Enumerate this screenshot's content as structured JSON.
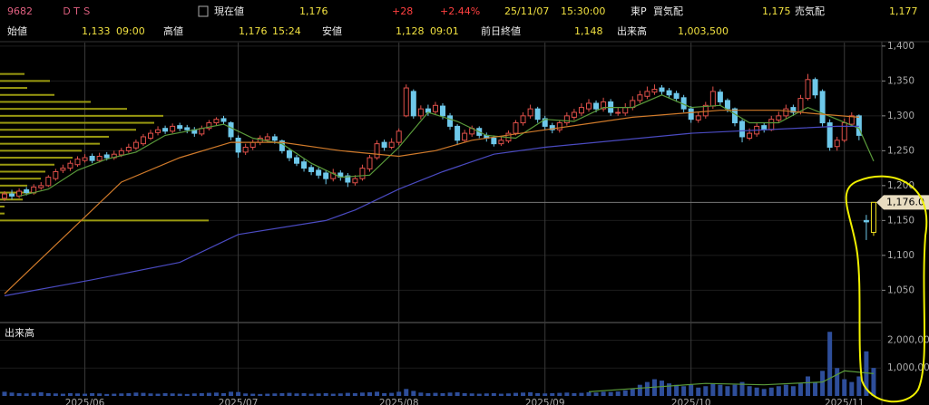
{
  "header": {
    "code": "9682",
    "name": "ＤＴＳ",
    "price_label": "現在値",
    "price": "1,176",
    "change": "+28",
    "change_pct": "+2.44%",
    "date": "25/11/07",
    "time": "15:30:00",
    "market": "東P",
    "bid_label": "買気配",
    "bid": "1,175",
    "ask_label": "売気配",
    "ask": "1,177",
    "open_label": "始値",
    "open": "1,133",
    "open_time": "09:00",
    "high_label": "高値",
    "high": "1,176",
    "high_time": "15:24",
    "low_label": "安値",
    "low": "1,128",
    "low_time": "09:01",
    "prev_close_label": "前日終値",
    "prev_close": "1,148",
    "volume_label": "出来高",
    "volume": "1,003,500"
  },
  "chart_data": {
    "type": "candlestick",
    "ylim": [
      1005,
      1405
    ],
    "yticks": [
      {
        "value": 1050,
        "label": "1,050"
      },
      {
        "value": 1100,
        "label": "1,100"
      },
      {
        "value": 1150,
        "label": "1,150"
      },
      {
        "value": 1200,
        "label": "1,200"
      },
      {
        "value": 1250,
        "label": "1,250"
      },
      {
        "value": 1300,
        "label": "1,300"
      },
      {
        "value": 1350,
        "label": "1,350"
      },
      {
        "value": 1400,
        "label": "1,400"
      }
    ],
    "xlim": [
      0,
      119
    ],
    "xticks": [
      {
        "value": 11,
        "label": "2025/06"
      },
      {
        "value": 32,
        "label": "2025/07"
      },
      {
        "value": 54,
        "label": "2025/08"
      },
      {
        "value": 74,
        "label": "2025/09"
      },
      {
        "value": 94,
        "label": "2025/10"
      },
      {
        "value": 115,
        "label": "2025/11"
      }
    ],
    "grid": true,
    "up_color": "#e0504a",
    "down_color": "#6ec8ea",
    "last_color": "#f0e020",
    "current_price": {
      "value": 1176,
      "label": "1,176.0"
    },
    "candles": [
      [
        1182,
        1192,
        1178,
        1188
      ],
      [
        1188,
        1194,
        1180,
        1185
      ],
      [
        1185,
        1196,
        1182,
        1192
      ],
      [
        1194,
        1198,
        1186,
        1190
      ],
      [
        1190,
        1202,
        1187,
        1198
      ],
      [
        1197,
        1205,
        1194,
        1200
      ],
      [
        1200,
        1215,
        1198,
        1212
      ],
      [
        1210,
        1224,
        1207,
        1220
      ],
      [
        1222,
        1230,
        1218,
        1225
      ],
      [
        1225,
        1236,
        1221,
        1232
      ],
      [
        1230,
        1242,
        1227,
        1238
      ],
      [
        1236,
        1245,
        1233,
        1240
      ],
      [
        1242,
        1246,
        1232,
        1236
      ],
      [
        1236,
        1247,
        1233,
        1242
      ],
      [
        1244,
        1248,
        1236,
        1240
      ],
      [
        1240,
        1250,
        1237,
        1245
      ],
      [
        1244,
        1254,
        1241,
        1250
      ],
      [
        1250,
        1260,
        1247,
        1255
      ],
      [
        1254,
        1266,
        1251,
        1262
      ],
      [
        1260,
        1274,
        1257,
        1270
      ],
      [
        1268,
        1280,
        1265,
        1275
      ],
      [
        1276,
        1285,
        1272,
        1280
      ],
      [
        1282,
        1286,
        1274,
        1278
      ],
      [
        1278,
        1289,
        1275,
        1285
      ],
      [
        1286,
        1290,
        1278,
        1282
      ],
      [
        1283,
        1287,
        1275,
        1280
      ],
      [
        1280,
        1284,
        1270,
        1275
      ],
      [
        1274,
        1286,
        1271,
        1282
      ],
      [
        1282,
        1294,
        1279,
        1290
      ],
      [
        1290,
        1298,
        1286,
        1295
      ],
      [
        1296,
        1300,
        1288,
        1292
      ],
      [
        1290,
        1292,
        1265,
        1270
      ],
      [
        1268,
        1272,
        1240,
        1248
      ],
      [
        1248,
        1260,
        1244,
        1255
      ],
      [
        1255,
        1266,
        1251,
        1262
      ],
      [
        1262,
        1272,
        1258,
        1268
      ],
      [
        1266,
        1275,
        1262,
        1270
      ],
      [
        1270,
        1274,
        1260,
        1265
      ],
      [
        1264,
        1266,
        1246,
        1250
      ],
      [
        1250,
        1254,
        1235,
        1240
      ],
      [
        1240,
        1244,
        1228,
        1232
      ],
      [
        1234,
        1238,
        1220,
        1225
      ],
      [
        1226,
        1230,
        1215,
        1220
      ],
      [
        1222,
        1226,
        1210,
        1215
      ],
      [
        1218,
        1222,
        1202,
        1210
      ],
      [
        1210,
        1224,
        1206,
        1218
      ],
      [
        1218,
        1222,
        1207,
        1212
      ],
      [
        1214,
        1218,
        1198,
        1205
      ],
      [
        1204,
        1215,
        1200,
        1210
      ],
      [
        1210,
        1230,
        1207,
        1225
      ],
      [
        1224,
        1244,
        1220,
        1240
      ],
      [
        1240,
        1265,
        1237,
        1260
      ],
      [
        1262,
        1266,
        1250,
        1255
      ],
      [
        1255,
        1268,
        1252,
        1262
      ],
      [
        1262,
        1282,
        1258,
        1278
      ],
      [
        1300,
        1345,
        1298,
        1340
      ],
      [
        1335,
        1338,
        1296,
        1300
      ],
      [
        1300,
        1315,
        1295,
        1310
      ],
      [
        1310,
        1316,
        1300,
        1305
      ],
      [
        1306,
        1320,
        1302,
        1315
      ],
      [
        1314,
        1318,
        1295,
        1300
      ],
      [
        1300,
        1304,
        1280,
        1285
      ],
      [
        1285,
        1288,
        1258,
        1265
      ],
      [
        1265,
        1280,
        1262,
        1275
      ],
      [
        1274,
        1286,
        1270,
        1282
      ],
      [
        1282,
        1285,
        1268,
        1272
      ],
      [
        1272,
        1276,
        1263,
        1268
      ],
      [
        1268,
        1272,
        1256,
        1260
      ],
      [
        1260,
        1270,
        1257,
        1265
      ],
      [
        1264,
        1279,
        1261,
        1275
      ],
      [
        1275,
        1294,
        1272,
        1290
      ],
      [
        1290,
        1305,
        1286,
        1300
      ],
      [
        1300,
        1316,
        1296,
        1310
      ],
      [
        1310,
        1313,
        1290,
        1295
      ],
      [
        1296,
        1300,
        1280,
        1285
      ],
      [
        1286,
        1290,
        1275,
        1280
      ],
      [
        1280,
        1294,
        1276,
        1290
      ],
      [
        1290,
        1305,
        1286,
        1300
      ],
      [
        1298,
        1310,
        1294,
        1305
      ],
      [
        1304,
        1318,
        1300,
        1312
      ],
      [
        1310,
        1324,
        1306,
        1318
      ],
      [
        1318,
        1322,
        1305,
        1310
      ],
      [
        1310,
        1326,
        1306,
        1320
      ],
      [
        1320,
        1324,
        1300,
        1305
      ],
      [
        1305,
        1312,
        1300,
        1305
      ],
      [
        1304,
        1318,
        1300,
        1312
      ],
      [
        1312,
        1328,
        1308,
        1322
      ],
      [
        1322,
        1336,
        1318,
        1330
      ],
      [
        1328,
        1342,
        1324,
        1335
      ],
      [
        1334,
        1345,
        1330,
        1338
      ],
      [
        1340,
        1344,
        1330,
        1335
      ],
      [
        1336,
        1340,
        1325,
        1330
      ],
      [
        1332,
        1336,
        1320,
        1325
      ],
      [
        1326,
        1330,
        1305,
        1310
      ],
      [
        1310,
        1314,
        1290,
        1295
      ],
      [
        1294,
        1306,
        1290,
        1300
      ],
      [
        1300,
        1320,
        1296,
        1315
      ],
      [
        1314,
        1342,
        1310,
        1335
      ],
      [
        1334,
        1338,
        1315,
        1320
      ],
      [
        1322,
        1325,
        1305,
        1310
      ],
      [
        1310,
        1312,
        1285,
        1290
      ],
      [
        1292,
        1295,
        1262,
        1270
      ],
      [
        1268,
        1282,
        1265,
        1275
      ],
      [
        1274,
        1290,
        1270,
        1285
      ],
      [
        1286,
        1290,
        1276,
        1280
      ],
      [
        1280,
        1300,
        1278,
        1295
      ],
      [
        1294,
        1306,
        1290,
        1300
      ],
      [
        1300,
        1316,
        1296,
        1310
      ],
      [
        1312,
        1316,
        1300,
        1305
      ],
      [
        1305,
        1330,
        1302,
        1325
      ],
      [
        1325,
        1360,
        1322,
        1352
      ],
      [
        1352,
        1355,
        1325,
        1330
      ],
      [
        1335,
        1338,
        1285,
        1290
      ],
      [
        1290,
        1295,
        1250,
        1255
      ],
      [
        1256,
        1270,
        1250,
        1265
      ],
      [
        1265,
        1296,
        1262,
        1290
      ],
      [
        1288,
        1305,
        1285,
        1300
      ],
      [
        1300,
        1302,
        1265,
        1272
      ],
      [
        1150,
        1158,
        1122,
        1148
      ],
      [
        1133,
        1176,
        1128,
        1176
      ]
    ],
    "ma": [
      {
        "color": "#5a9a3a",
        "x": [
          2,
          6,
          10,
          14,
          18,
          22,
          26,
          30,
          34,
          38,
          42,
          46,
          50,
          54,
          58,
          62,
          66,
          70,
          74,
          78,
          82,
          86,
          90,
          94,
          98,
          102,
          106,
          110,
          114,
          117,
          119
        ],
        "values": [
          1185,
          1195,
          1222,
          1238,
          1248,
          1272,
          1280,
          1288,
          1268,
          1260,
          1232,
          1212,
          1215,
          1255,
          1305,
          1292,
          1272,
          1268,
          1295,
          1292,
          1312,
          1312,
          1330,
          1312,
          1315,
          1290,
          1290,
          1312,
          1295,
          1282,
          1235
        ]
      },
      {
        "color": "#d07a2a",
        "x": [
          0,
          10,
          16,
          24,
          31,
          38,
          46,
          54,
          59,
          64,
          74,
          86,
          98,
          106,
          111,
          117
        ],
        "values": [
          1045,
          1145,
          1205,
          1240,
          1262,
          1262,
          1250,
          1242,
          1250,
          1265,
          1280,
          1298,
          1308,
          1308,
          1303,
          1298
        ]
      },
      {
        "color": "#4a4ac0",
        "x": [
          0,
          12,
          24,
          32,
          44,
          48,
          54,
          60,
          67,
          74,
          94,
          114,
          117
        ],
        "values": [
          1042,
          1065,
          1090,
          1130,
          1150,
          1165,
          1195,
          1220,
          1245,
          1255,
          1275,
          1285,
          1285
        ]
      }
    ],
    "volume_profile": {
      "color": "#9a9a10",
      "prices": [
        1150,
        1160,
        1170,
        1180,
        1190,
        1200,
        1210,
        1220,
        1230,
        1240,
        1250,
        1260,
        1270,
        1280,
        1290,
        1300,
        1310,
        1320,
        1330,
        1340,
        1350,
        1360
      ],
      "values": [
        2300000,
        50000,
        50000,
        250000,
        400000,
        300000,
        450000,
        500000,
        600000,
        800000,
        900000,
        1100000,
        1200000,
        1500000,
        1700000,
        1800000,
        1400000,
        1000000,
        600000,
        300000,
        550000,
        270000
      ]
    },
    "volume_panel_label": "出来高",
    "volume_color": "#2e4e9a",
    "volume_ylim": [
      0,
      2600000
    ],
    "volume_yticks": [
      {
        "value": 1000000,
        "label": "1,000,000"
      },
      {
        "value": 2000000,
        "label": "2,000,000"
      }
    ],
    "volumes": [
      150000,
      120000,
      100000,
      90000,
      110000,
      130000,
      100000,
      90000,
      80000,
      100000,
      90000,
      80000,
      100000,
      90000,
      70000,
      80000,
      90000,
      100000,
      120000,
      110000,
      90000,
      80000,
      100000,
      90000,
      80000,
      70000,
      90000,
      100000,
      110000,
      120000,
      100000,
      150000,
      140000,
      90000,
      80000,
      70000,
      80000,
      90000,
      100000,
      110000,
      90000,
      100000,
      80000,
      90000,
      100000,
      80000,
      90000,
      110000,
      100000,
      120000,
      130000,
      150000,
      100000,
      110000,
      150000,
      250000,
      180000,
      120000,
      100000,
      110000,
      100000,
      120000,
      130000,
      100000,
      90000,
      80000,
      90000,
      100000,
      80000,
      90000,
      110000,
      120000,
      130000,
      100000,
      90000,
      100000,
      110000,
      120000,
      100000,
      110000,
      130000,
      120000,
      150000,
      140000,
      160000,
      200000,
      250000,
      400000,
      500000,
      600000,
      550000,
      450000,
      400000,
      350000,
      400000,
      300000,
      350000,
      450000,
      400000,
      350000,
      400000,
      500000,
      350000,
      300000,
      250000,
      300000,
      350000,
      400000,
      350000,
      450000,
      700000,
      500000,
      900000,
      2300000,
      1000000,
      600000,
      500000,
      700000,
      1600000,
      1003500
    ],
    "volume_ma": {
      "color": "#5a9a3a",
      "x": [
        80,
        88,
        96,
        104,
        112,
        115,
        119
      ],
      "values": [
        150000,
        300000,
        450000,
        400000,
        500000,
        900000,
        800000
      ]
    }
  }
}
